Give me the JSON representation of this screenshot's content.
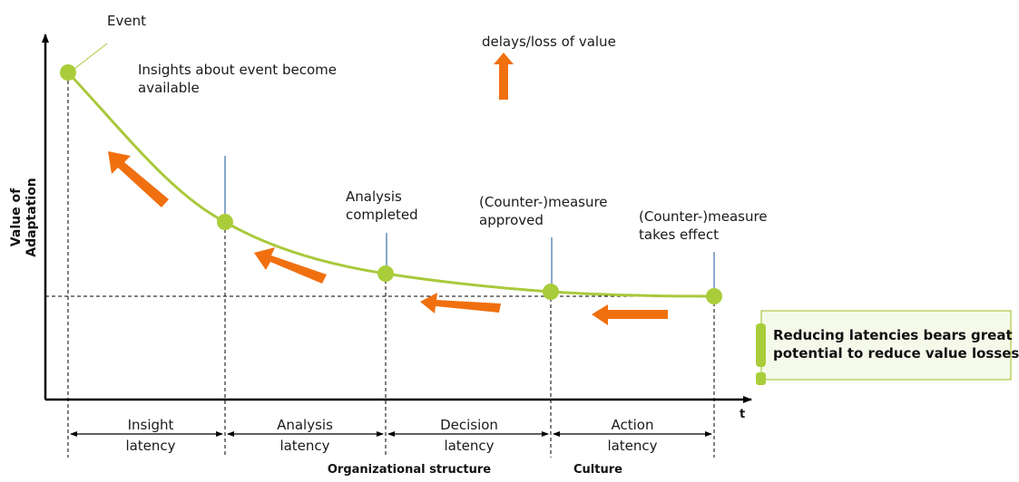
{
  "axis": {
    "y_label_line1": "Value of",
    "y_label_line2": "Adaptation",
    "x_label": "t"
  },
  "events": {
    "event": "Event",
    "insights_line1": "Insights about event become",
    "insights_line2": "available",
    "analysis_line1": "Analysis",
    "analysis_line2": "completed",
    "approved_line1": "(Counter-)measure",
    "approved_line2": "approved",
    "effect_line1": "(Counter-)measure",
    "effect_line2": "takes effect"
  },
  "legend": {
    "delays": "delays/loss of value"
  },
  "latencies": [
    {
      "line1": "Insight",
      "line2": "latency"
    },
    {
      "line1": "Analysis",
      "line2": "latency"
    },
    {
      "line1": "Decision",
      "line2": "latency"
    },
    {
      "line1": "Action",
      "line2": "latency"
    }
  ],
  "factors": {
    "org": "Organizational structure",
    "culture": "Culture"
  },
  "callout": {
    "line1": "Reducing latencies bears great",
    "line2": "potential to reduce value losses"
  },
  "colors": {
    "curve": "#a9c93c",
    "dot": "#a9cd3a",
    "arrow": "#f07010",
    "callout_bg": "#f5f9ea",
    "callout_border": "#a9c93c"
  }
}
